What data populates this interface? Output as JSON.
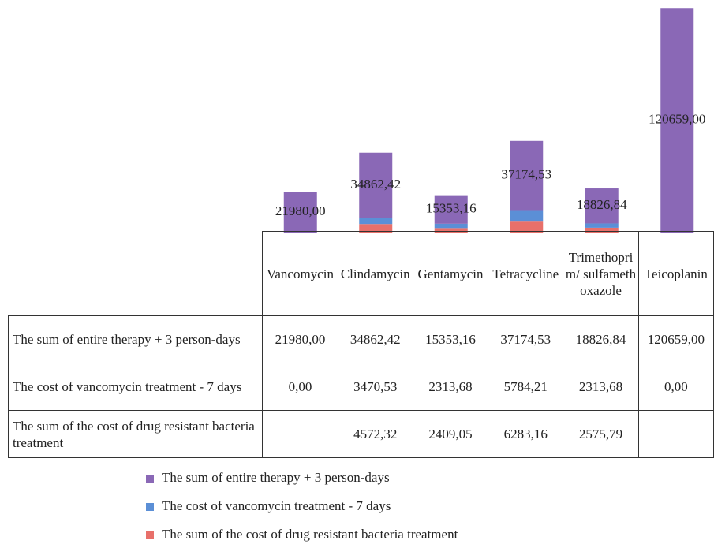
{
  "chart_data": {
    "type": "stacked_bar",
    "categories": [
      "Vancomycin",
      "Clindamycin",
      "Gentamycin",
      "Tetracycline",
      "Trimethoprim/ sulfamethoxazole",
      "Teicoplanin"
    ],
    "series": [
      {
        "name": "The sum of entire therapy + 3 person-days",
        "color": "#8a68b6",
        "values": [
          21980.0,
          34862.42,
          15353.16,
          37174.53,
          18826.84,
          120659.0
        ],
        "value_labels": [
          "21980,00",
          "34862,42",
          "15353,16",
          "37174,53",
          "18826,84",
          "120659,00"
        ]
      },
      {
        "name": "The cost of vancomycin treatment  - 7 days",
        "color": "#5b8fd6",
        "values": [
          0,
          3470.53,
          2313.68,
          5784.21,
          2313.68,
          0
        ],
        "value_labels": [
          "0,00",
          "3470,53",
          "2313,68",
          "5784,21",
          "2313,68",
          "0,00"
        ]
      },
      {
        "name": "The sum of the cost of drug resistant bacteria treatment",
        "color": "#e8706a",
        "values": [
          null,
          4572.32,
          2409.05,
          6283.16,
          2575.79,
          null
        ],
        "value_labels": [
          null,
          "4572,32",
          "2409,05",
          "6283,16",
          "2575,79",
          null
        ]
      }
    ],
    "ylim": [
      0,
      125000
    ],
    "legend": "bottom",
    "data_table": true
  }
}
